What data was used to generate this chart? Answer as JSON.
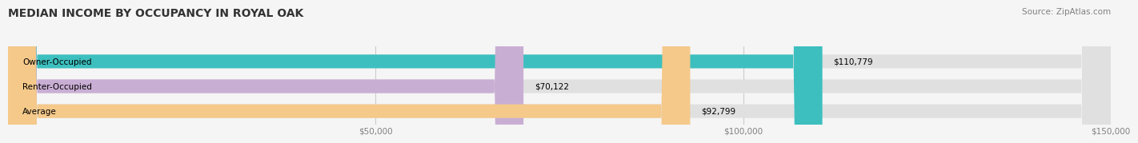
{
  "title": "MEDIAN INCOME BY OCCUPANCY IN ROYAL OAK",
  "source": "Source: ZipAtlas.com",
  "categories": [
    "Owner-Occupied",
    "Renter-Occupied",
    "Average"
  ],
  "values": [
    110779,
    70122,
    92799
  ],
  "labels": [
    "$110,779",
    "$70,122",
    "$92,799"
  ],
  "colors": [
    "#3dbfbf",
    "#c9aed4",
    "#f5c98a"
  ],
  "bar_bg_color": "#e0e0e0",
  "xlim": [
    0,
    150000
  ],
  "xticks": [
    50000,
    100000,
    150000
  ],
  "xticklabels": [
    "$50,000",
    "$100,000",
    "$150,000"
  ],
  "bar_height": 0.55,
  "title_fontsize": 10,
  "source_fontsize": 7.5,
  "label_fontsize": 7.5,
  "tick_fontsize": 7.5,
  "cat_fontsize": 7.5,
  "background_color": "#f5f5f5"
}
